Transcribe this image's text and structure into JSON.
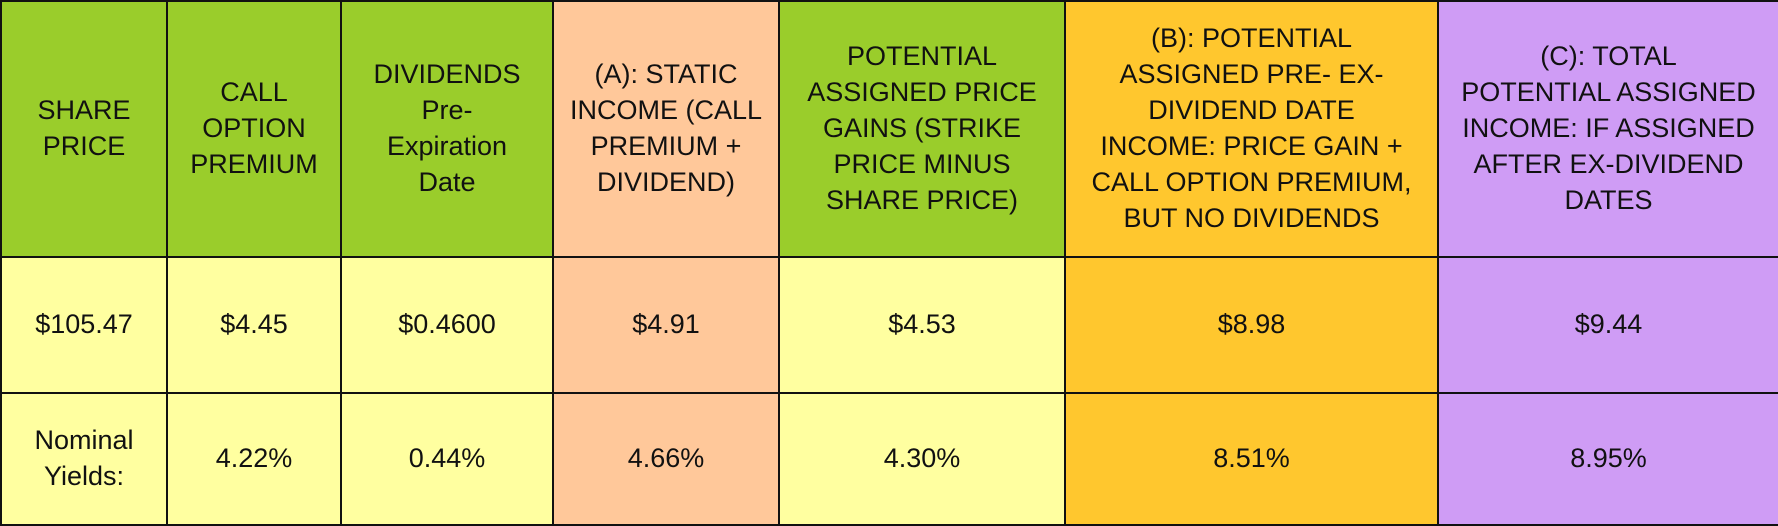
{
  "colors": {
    "header_green": "#9acd2b",
    "peach": "#ffc89a",
    "orange": "#ffc72e",
    "purple": "#cf9cf5",
    "light_yellow": "#ffffa0"
  },
  "headers": [
    "SHARE\nPRICE",
    "CALL\nOPTION\nPREMIUM",
    "DIVIDENDS\nPre-\nExpiration\nDate",
    "(A):  STATIC\nINCOME (CALL\nPREMIUM +\nDIVIDEND)",
    "POTENTIAL\nASSIGNED PRICE\nGAINS (STRIKE\nPRICE MINUS\nSHARE PRICE)",
    "(B):  POTENTIAL\nASSIGNED PRE- EX-\nDIVIDEND DATE\nINCOME: PRICE GAIN +\nCALL OPTION PREMIUM,\nBUT NO DIVIDENDS",
    "(C):   TOTAL\nPOTENTIAL ASSIGNED\nINCOME: IF ASSIGNED\nAFTER  EX-DIVIDEND\nDATES"
  ],
  "values": [
    "$105.47",
    "$4.45",
    "$0.4600",
    "$4.91",
    "$4.53",
    "$8.98",
    "$9.44"
  ],
  "yields": [
    "Nominal\nYields:",
    "4.22%",
    "0.44%",
    "4.66%",
    "4.30%",
    "8.51%",
    "8.95%"
  ]
}
